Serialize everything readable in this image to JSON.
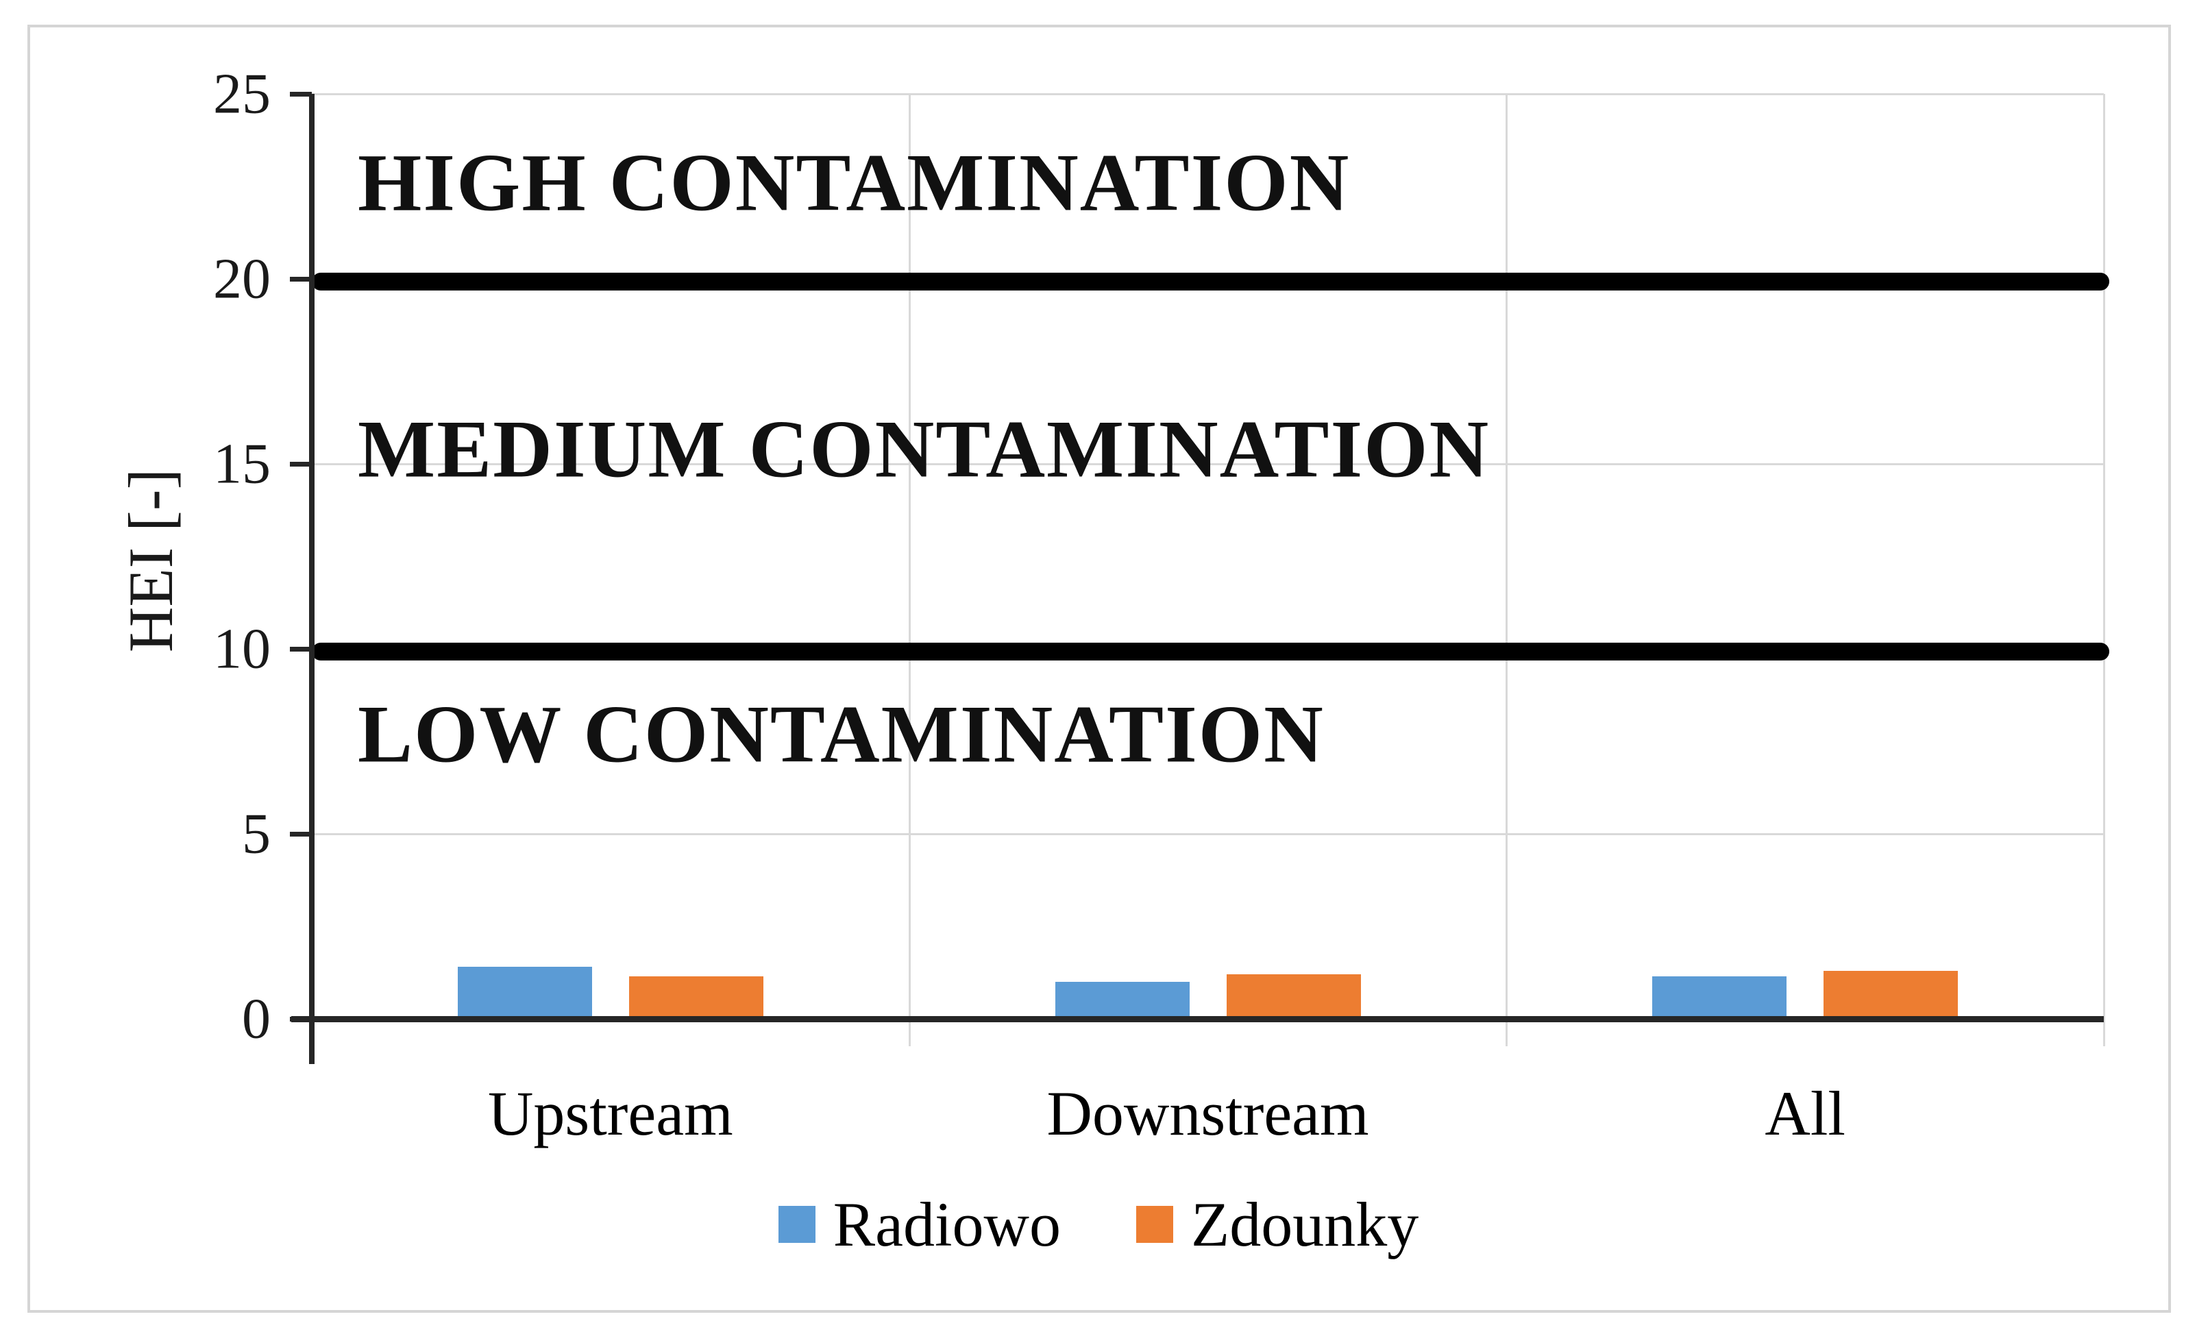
{
  "figure": {
    "background": "#ffffff",
    "frame_border_color": "#d5d5d5"
  },
  "chart_data": {
    "type": "bar",
    "title": "",
    "categories": [
      "Upstream",
      "Downstream",
      "All"
    ],
    "series": [
      {
        "name": "Radiowo",
        "color": "#5B9BD5",
        "values": [
          1.4,
          1.0,
          1.15
        ]
      },
      {
        "name": "Zdounky",
        "color": "#ED7D31",
        "values": [
          1.15,
          1.2,
          1.3
        ]
      }
    ],
    "xlabel": "",
    "ylabel": "HEI [-]",
    "ylim": [
      0,
      25
    ],
    "yticks": [
      0,
      5,
      10,
      15,
      20,
      25
    ],
    "grid": true,
    "legend_position": "bottom",
    "axis_color": "#262626",
    "gridline_color": "#d9d9d9",
    "annotations": {
      "zone_lines": [
        {
          "value": 20,
          "color": "#000000"
        },
        {
          "value": 10,
          "color": "#000000"
        }
      ],
      "zone_labels": [
        {
          "text": "HIGH CONTAMINATION",
          "at_value": 22.5
        },
        {
          "text": "MEDIUM CONTAMINATION",
          "at_value": 15.3
        },
        {
          "text": "LOW CONTAMINATION",
          "at_value": 7.6
        }
      ]
    }
  }
}
